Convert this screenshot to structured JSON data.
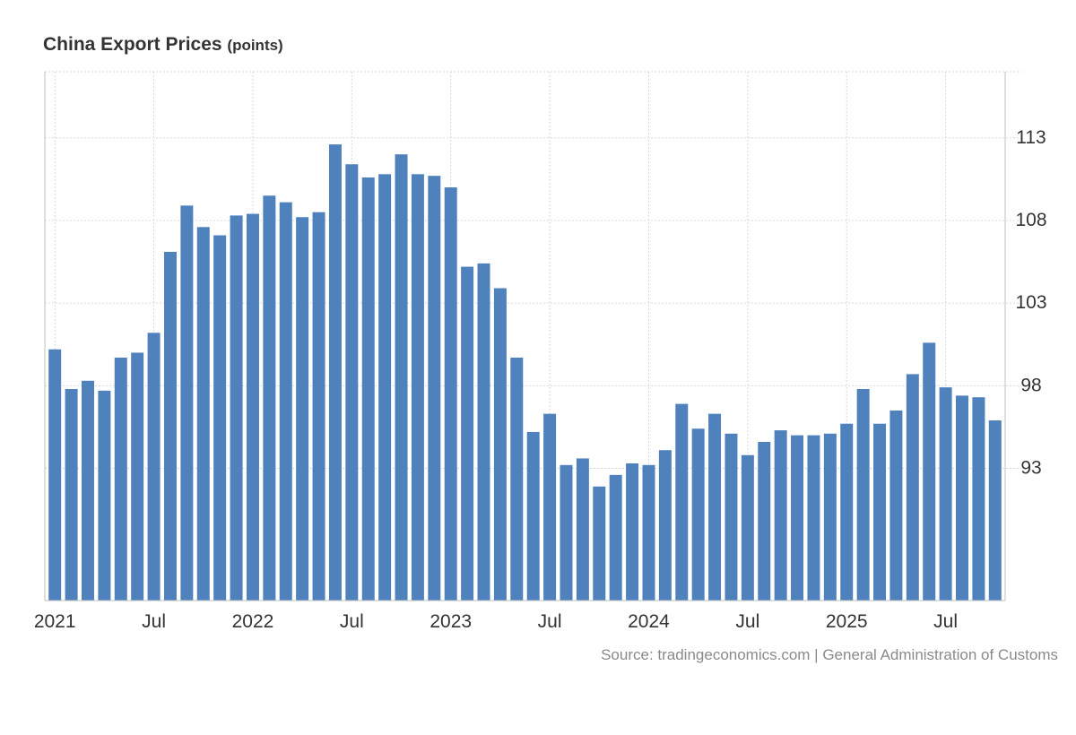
{
  "chart_data": {
    "type": "bar",
    "title": "China Export Prices",
    "unit": "(points)",
    "source": "Source: tradingeconomics.com | General Administration of Customs",
    "xlabel": "",
    "ylabel": "",
    "ylim": [
      85,
      117
    ],
    "yticks": [
      93,
      98,
      103,
      108,
      113
    ],
    "x_tick_labels": [
      {
        "index": 0,
        "label": "2021"
      },
      {
        "index": 6,
        "label": "Jul"
      },
      {
        "index": 12,
        "label": "2022"
      },
      {
        "index": 18,
        "label": "Jul"
      },
      {
        "index": 24,
        "label": "2023"
      },
      {
        "index": 30,
        "label": "Jul"
      },
      {
        "index": 36,
        "label": "2024"
      },
      {
        "index": 42,
        "label": "Jul"
      },
      {
        "index": 48,
        "label": "2025"
      },
      {
        "index": 54,
        "label": "Jul"
      }
    ],
    "series": [
      {
        "name": "China Export Prices",
        "color": "#4f81bd",
        "values": [
          100.2,
          97.8,
          98.3,
          97.7,
          99.7,
          100.0,
          101.2,
          106.1,
          108.9,
          107.6,
          107.1,
          108.3,
          108.4,
          109.5,
          109.1,
          108.2,
          108.5,
          112.6,
          111.4,
          110.6,
          110.8,
          112.0,
          110.8,
          110.7,
          110.0,
          105.2,
          105.4,
          103.9,
          99.7,
          95.2,
          96.3,
          93.2,
          93.6,
          91.9,
          92.6,
          93.3,
          93.2,
          94.1,
          96.9,
          95.4,
          96.3,
          95.1,
          93.8,
          94.6,
          95.3,
          95.0,
          95.0,
          95.1,
          95.7,
          97.8,
          95.7,
          96.5,
          98.7,
          100.6,
          97.9,
          97.4,
          97.3,
          95.9
        ]
      }
    ],
    "categories": [
      "2021-01",
      "2021-02",
      "2021-03",
      "2021-04",
      "2021-05",
      "2021-06",
      "2021-07",
      "2021-08",
      "2021-09",
      "2021-10",
      "2021-11",
      "2021-12",
      "2022-01",
      "2022-02",
      "2022-03",
      "2022-04",
      "2022-05",
      "2022-06",
      "2022-07",
      "2022-08",
      "2022-09",
      "2022-10",
      "2022-11",
      "2022-12",
      "2023-01",
      "2023-02",
      "2023-03",
      "2023-04",
      "2023-05",
      "2023-06",
      "2023-07",
      "2023-08",
      "2023-09",
      "2023-10",
      "2023-11",
      "2023-12",
      "2024-01",
      "2024-02",
      "2024-03",
      "2024-04",
      "2024-05",
      "2024-06",
      "2024-07",
      "2024-08",
      "2024-09",
      "2024-10",
      "2024-11",
      "2024-12",
      "2025-01",
      "2025-02",
      "2025-03",
      "2025-04",
      "2025-05",
      "2025-06",
      "2025-07",
      "2025-08",
      "2025-09",
      "2025-10"
    ]
  }
}
